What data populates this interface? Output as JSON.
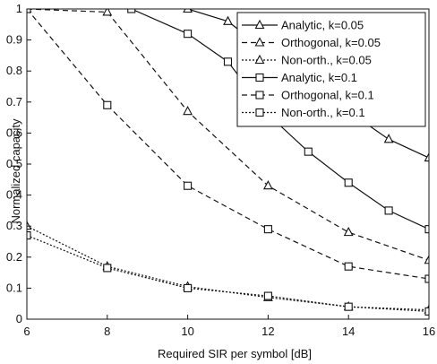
{
  "chart_data": {
    "type": "line",
    "title": "",
    "xlabel": "Required SIR per symbol [dB]",
    "ylabel": "Normalized capacity",
    "xlim": [
      6,
      16
    ],
    "ylim": [
      0,
      1
    ],
    "xticks": [
      6,
      8,
      10,
      12,
      14,
      16
    ],
    "yticks": [
      0,
      0.1,
      0.2,
      0.3,
      0.4,
      0.5,
      0.6,
      0.7,
      0.8,
      0.9,
      1
    ],
    "grid": false,
    "legend_position": "top-right",
    "series": [
      {
        "name": "Analytic, k=0.05",
        "line": "solid",
        "marker": "triangle",
        "x": [
          10,
          11,
          12,
          13,
          14,
          15,
          16
        ],
        "y": [
          1.0,
          0.96,
          0.86,
          0.75,
          0.67,
          0.58,
          0.52
        ]
      },
      {
        "name": "Orthogonal, k=0.05",
        "line": "dashed",
        "marker": "triangle",
        "x": [
          6,
          8,
          10,
          12,
          14,
          16
        ],
        "y": [
          1.0,
          0.99,
          0.67,
          0.43,
          0.28,
          0.19
        ]
      },
      {
        "name": "Non-orth., k=0.05",
        "line": "dotted",
        "marker": "triangle",
        "x": [
          6,
          8,
          10,
          12,
          14,
          16
        ],
        "y": [
          0.3,
          0.17,
          0.105,
          0.07,
          0.04,
          0.03
        ]
      },
      {
        "name": "Analytic, k=0.1",
        "line": "solid",
        "marker": "square",
        "x": [
          8.6,
          10,
          11,
          12,
          13,
          14,
          15,
          16
        ],
        "y": [
          1.0,
          0.92,
          0.83,
          0.66,
          0.54,
          0.44,
          0.35,
          0.29
        ]
      },
      {
        "name": "Orthogonal, k=0.1",
        "line": "dashed",
        "marker": "square",
        "x": [
          6,
          8,
          10,
          12,
          14,
          16
        ],
        "y": [
          1.0,
          0.69,
          0.43,
          0.29,
          0.17,
          0.13
        ]
      },
      {
        "name": "Non-orth., k=0.1",
        "line": "dotted",
        "marker": "square",
        "x": [
          6,
          8,
          10,
          12,
          14,
          16
        ],
        "y": [
          0.27,
          0.165,
          0.1,
          0.075,
          0.04,
          0.025
        ]
      }
    ]
  }
}
